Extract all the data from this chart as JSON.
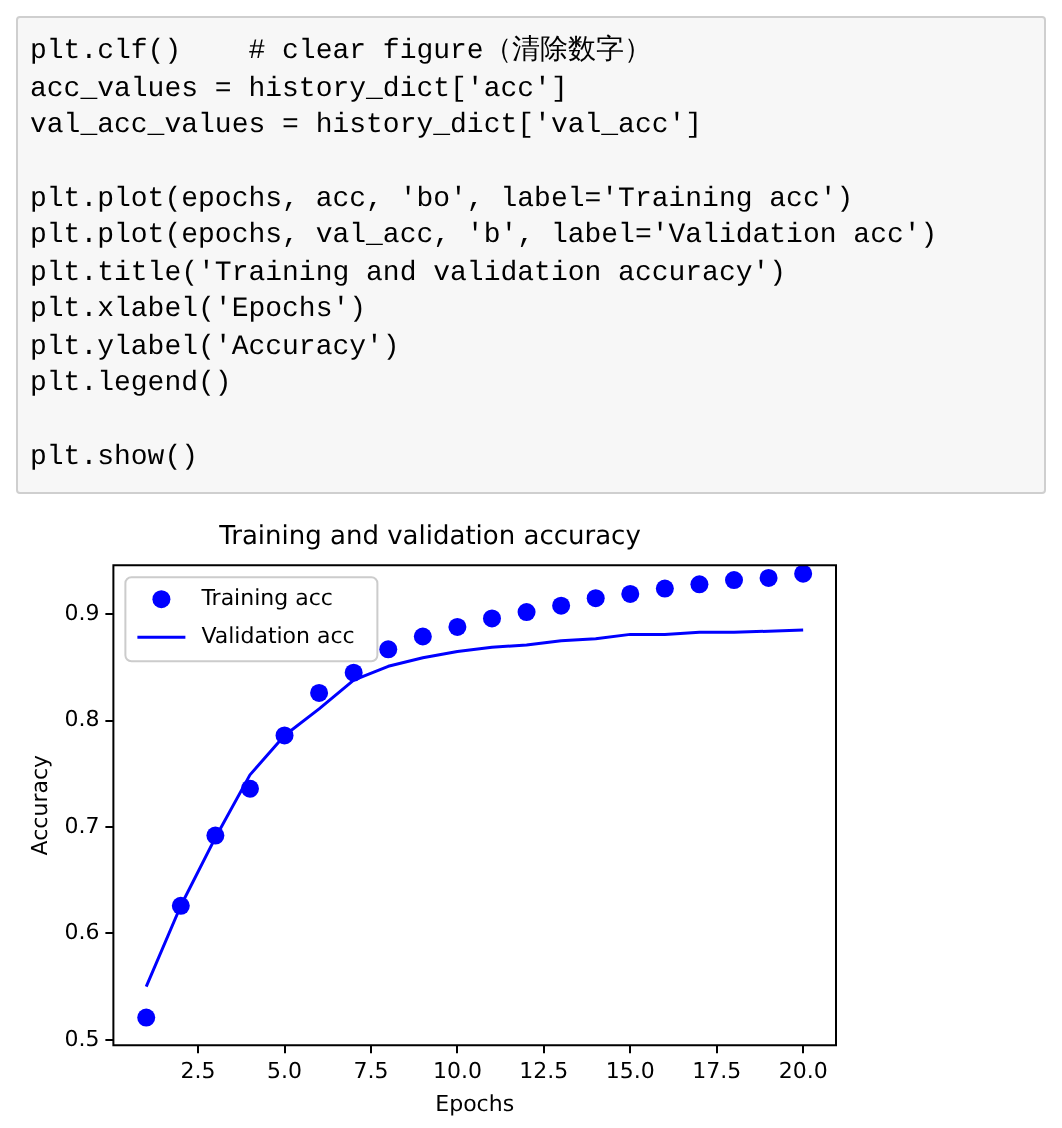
{
  "chart_data": {
    "type": "line",
    "title": "Training and validation accuracy",
    "xlabel": "Epochs",
    "ylabel": "Accuracy",
    "annotations": [
      "plt.clf()    # clear figure（清除数字）\nacc_values = history_dict['acc']\nval_acc_values = history_dict['val_acc']",
      "plt.plot(epochs, acc, 'bo', label='Training acc')\nplt.plot(epochs, val_acc, 'b', label='Validation acc')\nplt.title('Training and validation accuracy')\nplt.xlabel('Epochs')\nplt.ylabel('Accuracy')\nplt.legend()",
      "plt.show()"
    ],
    "x": [
      1,
      2,
      3,
      4,
      5,
      6,
      7,
      8,
      9,
      10,
      11,
      12,
      13,
      14,
      15,
      16,
      17,
      18,
      19,
      20
    ],
    "series": [
      {
        "name": "Training acc",
        "type": "scatter",
        "marker": "circle",
        "color": "#0000ff",
        "values": [
          0.521,
          0.626,
          0.692,
          0.736,
          0.786,
          0.826,
          0.845,
          0.867,
          0.879,
          0.888,
          0.896,
          0.902,
          0.908,
          0.915,
          0.919,
          0.924,
          0.928,
          0.932,
          0.934,
          0.938
        ]
      },
      {
        "name": "Validation acc",
        "type": "line",
        "marker": "none",
        "line_style": "solid",
        "color": "#0000ff",
        "values": [
          0.55,
          0.626,
          0.69,
          0.749,
          0.786,
          0.811,
          0.838,
          0.851,
          0.859,
          0.865,
          0.869,
          0.871,
          0.875,
          0.877,
          0.881,
          0.881,
          0.883,
          0.883,
          0.884,
          0.885
        ]
      }
    ],
    "xlim": [
      0.05,
      20.95
    ],
    "xticks": [
      {
        "value": 2.5,
        "label": "2.5"
      },
      {
        "value": 5,
        "label": "5.0"
      },
      {
        "value": 7.5,
        "label": "7.5"
      },
      {
        "value": 10,
        "label": "10.0"
      },
      {
        "value": 12.5,
        "label": "12.5"
      },
      {
        "value": 15,
        "label": "15.0"
      },
      {
        "value": 17.5,
        "label": "17.5"
      },
      {
        "value": 20,
        "label": "20.0"
      }
    ],
    "ylim": [
      0.495,
      0.946
    ],
    "yticks": [
      0.5,
      0.6,
      0.7,
      0.8,
      0.9
    ],
    "grid": false,
    "legend": "top left"
  }
}
